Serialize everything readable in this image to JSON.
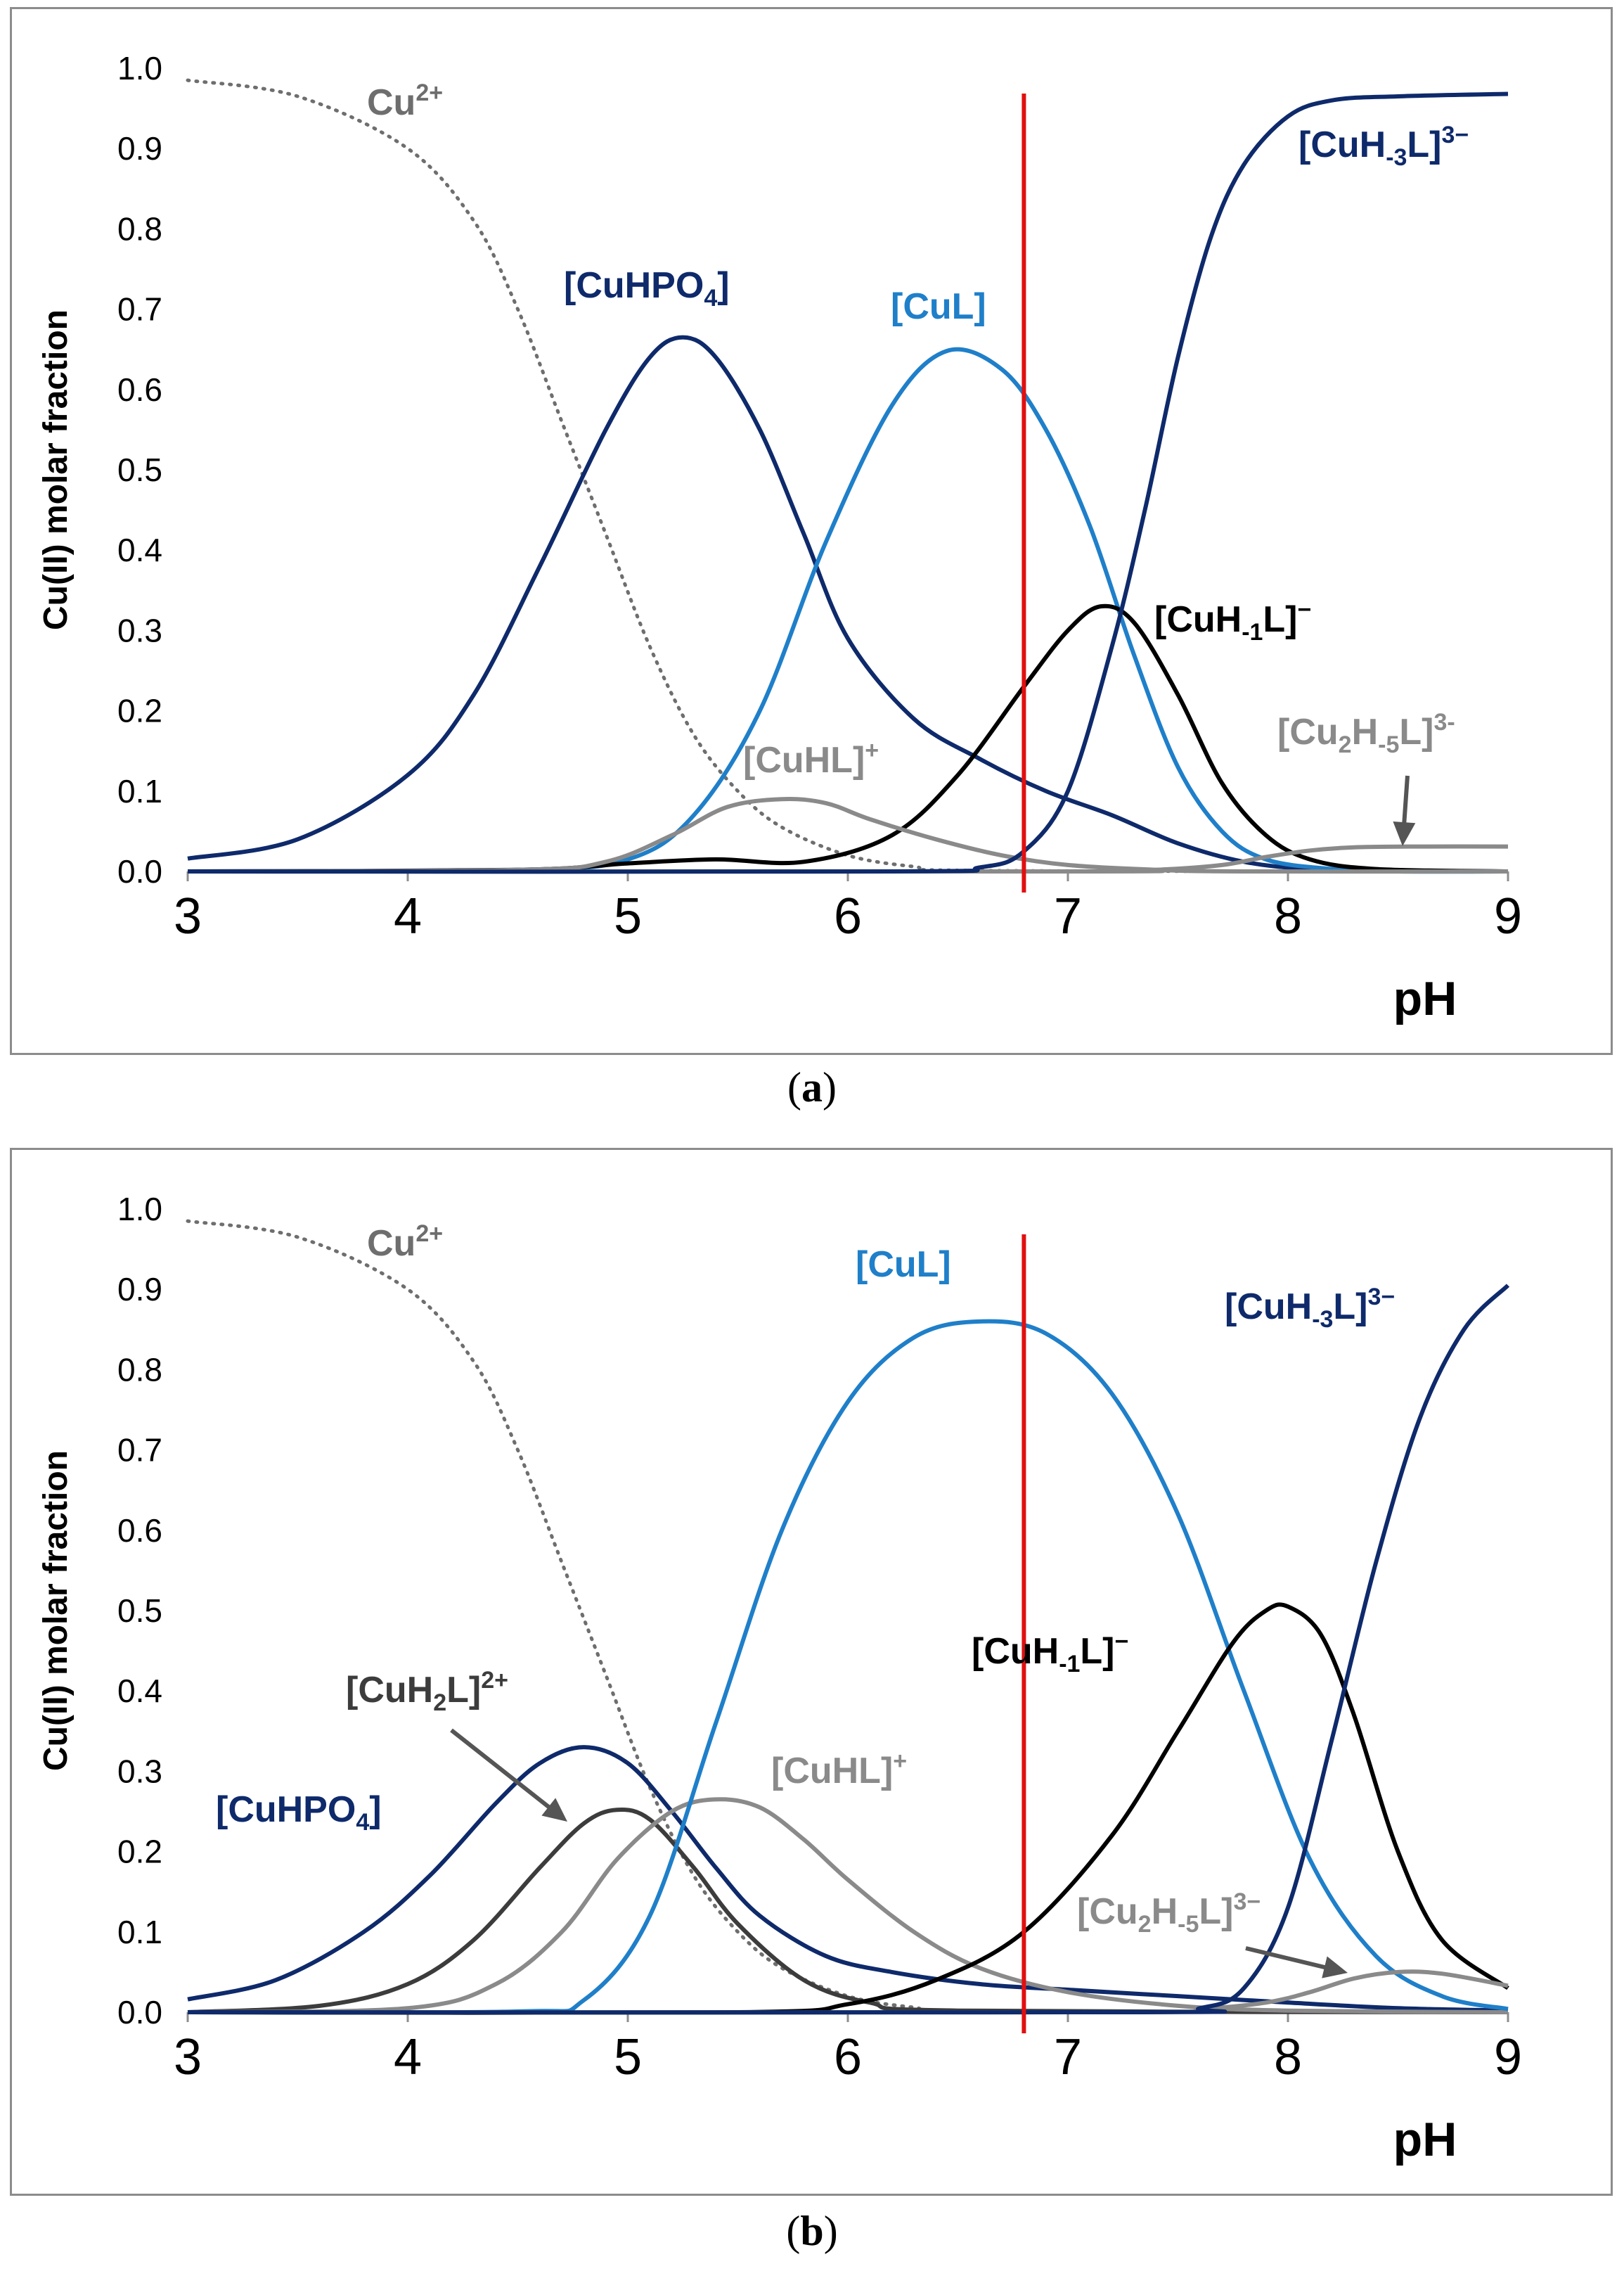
{
  "colors": {
    "navy": "#0e2a6b",
    "blue": "#1f7fc9",
    "black": "#000000",
    "gray": "#8a8a8a",
    "darkgray": "#3c3c3c",
    "dotted": "#6e6e6e",
    "red": "#e01010",
    "axis": "#8c8c8c"
  },
  "captions": {
    "a_open": "(",
    "a_letter": "a",
    "a_close": ")",
    "b_open": "(",
    "b_letter": "b",
    "b_close": ")"
  },
  "chart_data": [
    {
      "id": "a",
      "type": "line",
      "xlabel": "pH",
      "ylabel": "Cu(II) molar fraction",
      "xlim": [
        3,
        9
      ],
      "ylim": [
        0,
        1
      ],
      "xticks": [
        "3",
        "4",
        "5",
        "6",
        "7",
        "8",
        "9"
      ],
      "yticks": [
        "0.0",
        "0.1",
        "0.2",
        "0.3",
        "0.4",
        "0.5",
        "0.6",
        "0.7",
        "0.8",
        "0.9",
        "1.0"
      ],
      "vline": 6.8,
      "series": [
        {
          "name": "Cu2+",
          "color": "dotted",
          "dash": true,
          "x": [
            3,
            3.5,
            4,
            4.3,
            4.5,
            4.7,
            4.9,
            5.1,
            5.3,
            5.5,
            5.7,
            6,
            6.3,
            6.6,
            9
          ],
          "y": [
            0.985,
            0.965,
            0.9,
            0.81,
            0.7,
            0.56,
            0.42,
            0.28,
            0.17,
            0.1,
            0.055,
            0.02,
            0.006,
            0.001,
            0
          ]
        },
        {
          "name": "[CuHPO4]",
          "color": "navy",
          "x": [
            3,
            3.5,
            4,
            4.3,
            4.6,
            4.9,
            5.1,
            5.25,
            5.4,
            5.6,
            5.8,
            6,
            6.3,
            6.6,
            6.9,
            7.2,
            7.5,
            7.8,
            8.1,
            8.5,
            9
          ],
          "y": [
            0.016,
            0.04,
            0.12,
            0.22,
            0.38,
            0.55,
            0.64,
            0.665,
            0.64,
            0.55,
            0.42,
            0.29,
            0.19,
            0.14,
            0.1,
            0.07,
            0.035,
            0.012,
            0.003,
            0.001,
            0
          ]
        },
        {
          "name": "[CuL]",
          "color": "blue",
          "x": [
            3,
            4.5,
            5,
            5.3,
            5.6,
            5.9,
            6.2,
            6.45,
            6.7,
            6.9,
            7.1,
            7.3,
            7.5,
            7.7,
            7.9,
            8.2,
            8.5,
            9
          ],
          "y": [
            0,
            0.002,
            0.015,
            0.07,
            0.2,
            0.41,
            0.58,
            0.648,
            0.625,
            0.55,
            0.43,
            0.27,
            0.13,
            0.05,
            0.015,
            0.003,
            0,
            0
          ]
        },
        {
          "name": "[CuH-1L]-",
          "color": "black",
          "x": [
            3,
            4.5,
            5,
            5.4,
            5.8,
            6.2,
            6.5,
            6.8,
            7,
            7.15,
            7.3,
            7.5,
            7.7,
            7.9,
            8.1,
            8.4,
            9
          ],
          "y": [
            0,
            0.002,
            0.01,
            0.015,
            0.012,
            0.045,
            0.12,
            0.23,
            0.3,
            0.33,
            0.31,
            0.22,
            0.11,
            0.045,
            0.015,
            0.003,
            0
          ]
        },
        {
          "name": "[CuHL]+",
          "color": "gray",
          "x": [
            3,
            4.5,
            4.9,
            5.2,
            5.45,
            5.7,
            5.9,
            6.1,
            6.4,
            6.7,
            7,
            7.4,
            7.8,
            9
          ],
          "y": [
            0,
            0.002,
            0.012,
            0.045,
            0.08,
            0.09,
            0.085,
            0.065,
            0.04,
            0.02,
            0.008,
            0.002,
            0,
            0
          ]
        },
        {
          "name": "[Cu2H-5L]3-",
          "color": "gray",
          "x": [
            3,
            7,
            7.4,
            7.7,
            7.9,
            8.1,
            8.3,
            8.6,
            9
          ],
          "y": [
            0,
            0,
            0.002,
            0.008,
            0.018,
            0.026,
            0.03,
            0.031,
            0.031
          ]
        },
        {
          "name": "[CuH-3L]3-",
          "color": "navy",
          "x": [
            3,
            6.2,
            6.6,
            6.8,
            7,
            7.2,
            7.35,
            7.5,
            7.65,
            7.8,
            8,
            8.2,
            8.5,
            9
          ],
          "y": [
            0,
            0,
            0.005,
            0.025,
            0.1,
            0.28,
            0.45,
            0.64,
            0.79,
            0.88,
            0.94,
            0.96,
            0.965,
            0.968
          ]
        }
      ],
      "labels": [
        {
          "text": "Cu",
          "sup": "2+",
          "color": "dotted"
        },
        {
          "text": "[CuHPO4]",
          "color": "navy"
        },
        {
          "text": "[CuL]",
          "color": "blue"
        },
        {
          "text": "[CuH-3L]3−",
          "color": "navy"
        },
        {
          "text": "[CuH-1L]−",
          "color": "black"
        },
        {
          "text": "[CuHL]+",
          "color": "gray"
        },
        {
          "text": "[Cu2H-5L]3-",
          "color": "gray"
        }
      ]
    },
    {
      "id": "b",
      "type": "line",
      "xlabel": "pH",
      "ylabel": "Cu(II) molar fraction",
      "xlim": [
        3,
        9
      ],
      "ylim": [
        0,
        1
      ],
      "xticks": [
        "3",
        "4",
        "5",
        "6",
        "7",
        "8",
        "9"
      ],
      "yticks": [
        "0.0",
        "0.1",
        "0.2",
        "0.3",
        "0.4",
        "0.5",
        "0.6",
        "0.7",
        "0.8",
        "0.9",
        "1.0"
      ],
      "vline": 6.8,
      "series": [
        {
          "name": "Cu2+",
          "color": "dotted",
          "dash": true,
          "x": [
            3,
            3.5,
            4,
            4.3,
            4.5,
            4.7,
            4.9,
            5.1,
            5.3,
            5.5,
            5.7,
            6,
            6.3,
            6.6,
            9
          ],
          "y": [
            0.985,
            0.965,
            0.9,
            0.81,
            0.7,
            0.56,
            0.42,
            0.28,
            0.17,
            0.1,
            0.055,
            0.02,
            0.006,
            0.001,
            0
          ]
        },
        {
          "name": "[CuHPO4]",
          "color": "navy",
          "x": [
            3,
            3.4,
            3.8,
            4.1,
            4.4,
            4.6,
            4.8,
            5,
            5.2,
            5.4,
            5.6,
            5.9,
            6.2,
            6.6,
            7,
            7.5,
            8,
            8.5,
            9
          ],
          "y": [
            0.016,
            0.04,
            0.1,
            0.17,
            0.26,
            0.31,
            0.33,
            0.31,
            0.25,
            0.18,
            0.12,
            0.07,
            0.05,
            0.035,
            0.028,
            0.02,
            0.012,
            0.005,
            0.002
          ]
        },
        {
          "name": "[CuH2L]2+",
          "color": "darkgray",
          "x": [
            3,
            3.6,
            4,
            4.3,
            4.6,
            4.8,
            4.95,
            5.1,
            5.3,
            5.5,
            5.8,
            6.1,
            6.5,
            9
          ],
          "y": [
            0,
            0.008,
            0.035,
            0.09,
            0.18,
            0.235,
            0.252,
            0.24,
            0.18,
            0.11,
            0.04,
            0.012,
            0.002,
            0
          ]
        },
        {
          "name": "[CuHL]+",
          "color": "gray",
          "x": [
            3,
            4,
            4.4,
            4.7,
            4.95,
            5.2,
            5.4,
            5.6,
            5.8,
            6,
            6.3,
            6.6,
            7,
            7.5,
            8,
            9
          ],
          "y": [
            0,
            0.005,
            0.035,
            0.1,
            0.19,
            0.25,
            0.265,
            0.255,
            0.215,
            0.165,
            0.1,
            0.055,
            0.025,
            0.008,
            0.002,
            0
          ]
        },
        {
          "name": "[CuL]",
          "color": "blue",
          "x": [
            3,
            4.5,
            4.8,
            5.1,
            5.4,
            5.7,
            6,
            6.3,
            6.6,
            6.9,
            7.2,
            7.5,
            7.8,
            8.1,
            8.4,
            8.7,
            9
          ],
          "y": [
            0,
            0.001,
            0.015,
            0.12,
            0.36,
            0.6,
            0.76,
            0.84,
            0.86,
            0.845,
            0.77,
            0.62,
            0.4,
            0.19,
            0.07,
            0.02,
            0.004
          ]
        },
        {
          "name": "[CuH-1L]-",
          "color": "black",
          "x": [
            3,
            5.5,
            6,
            6.4,
            6.8,
            7.2,
            7.5,
            7.75,
            7.9,
            8,
            8.15,
            8.3,
            8.5,
            8.7,
            9
          ],
          "y": [
            0,
            0,
            0.01,
            0.04,
            0.1,
            0.22,
            0.35,
            0.46,
            0.5,
            0.505,
            0.47,
            0.37,
            0.2,
            0.09,
            0.03
          ]
        },
        {
          "name": "[Cu2H-5L]3-",
          "color": "gray",
          "x": [
            3,
            7.2,
            7.6,
            7.9,
            8.1,
            8.3,
            8.5,
            8.7,
            9
          ],
          "y": [
            0,
            0,
            0.004,
            0.012,
            0.025,
            0.042,
            0.05,
            0.048,
            0.033
          ]
        },
        {
          "name": "[CuH-3L]3-",
          "color": "navy",
          "x": [
            3,
            7.3,
            7.6,
            7.8,
            8,
            8.2,
            8.4,
            8.6,
            8.8,
            9
          ],
          "y": [
            0,
            0,
            0.005,
            0.03,
            0.13,
            0.34,
            0.56,
            0.74,
            0.85,
            0.905
          ]
        }
      ],
      "labels": [
        {
          "text": "Cu",
          "sup": "2+",
          "color": "dotted"
        },
        {
          "text": "[CuL]",
          "color": "blue"
        },
        {
          "text": "[CuH-3L]3−",
          "color": "navy"
        },
        {
          "text": "[CuH-1L]−",
          "color": "black"
        },
        {
          "text": "[CuH2L]2+",
          "color": "darkgray"
        },
        {
          "text": "[CuHL]+",
          "color": "gray"
        },
        {
          "text": "[CuHPO4]",
          "color": "navy"
        },
        {
          "text": "[Cu2H-5L]3−",
          "color": "gray"
        }
      ]
    }
  ]
}
